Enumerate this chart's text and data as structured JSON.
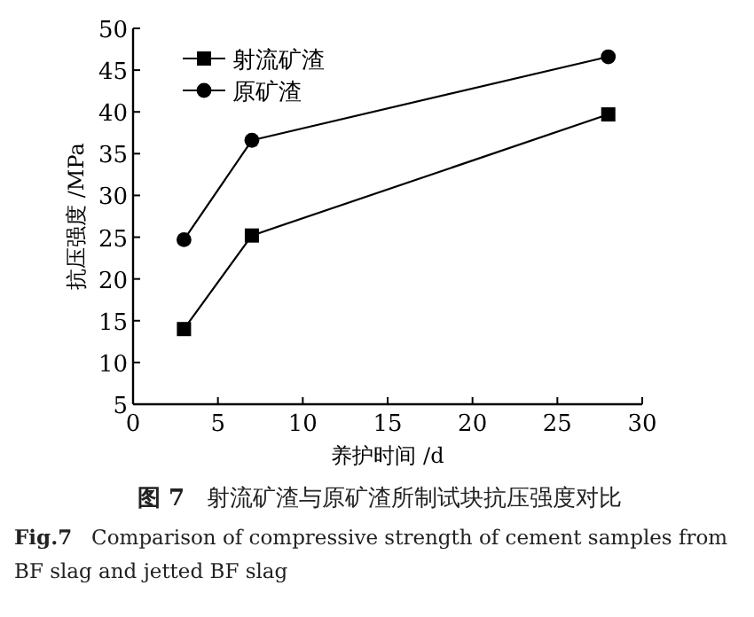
{
  "chart_data": {
    "type": "line",
    "xlabel": "养护时间 /d",
    "ylabel": "抗压强度 /MPa",
    "xlim": [
      0,
      30
    ],
    "xticks": [
      0,
      5,
      10,
      15,
      20,
      25,
      30
    ],
    "ylim": [
      5,
      50
    ],
    "yticks": [
      5,
      10,
      15,
      20,
      25,
      30,
      35,
      40,
      45,
      50
    ],
    "legend": "top left",
    "grid": false,
    "series": [
      {
        "name": "射流矿渣",
        "color": "#000000",
        "marker": "square",
        "x": [
          3,
          7,
          28
        ],
        "values": [
          14,
          25.2,
          39.7
        ]
      },
      {
        "name": "原矿渣",
        "color": "#000000",
        "marker": "circle",
        "x": [
          3,
          7,
          28
        ],
        "values": [
          24.7,
          36.6,
          46.6
        ]
      }
    ],
    "annotations": [
      "**图 7**  射流矿渣与原矿渣所制试块抗压强度对比",
      "**Fig.7**  Comparison of compressive strength of cement samples from BF slag and jetted BF slag"
    ]
  }
}
